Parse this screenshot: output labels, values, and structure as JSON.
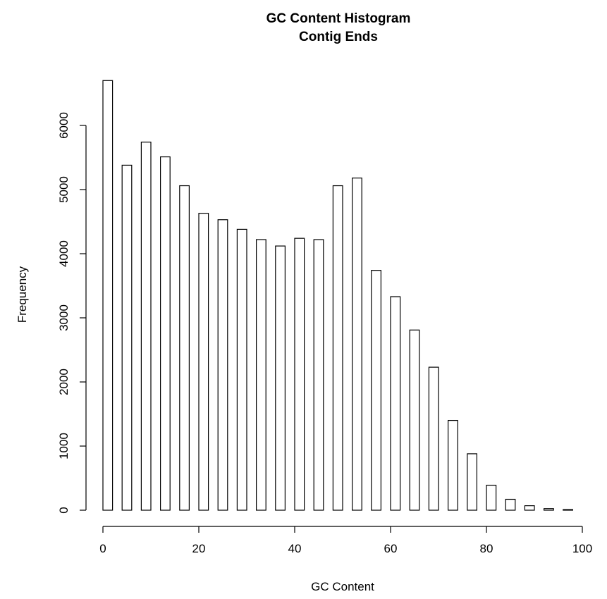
{
  "chart_data": {
    "type": "bar",
    "title": "GC Content Histogram",
    "subtitle": "Contig Ends",
    "xlabel": "GC Content",
    "ylabel": "Frequency",
    "xlim": [
      0,
      100
    ],
    "ylim": [
      0,
      6700
    ],
    "x_ticks": [
      0,
      20,
      40,
      60,
      80,
      100
    ],
    "y_ticks": [
      0,
      1000,
      2000,
      3000,
      4000,
      5000,
      6000
    ],
    "grid": false,
    "legend": "none",
    "bar_color": "#ffffff",
    "edge_color": "#000000",
    "bin_width": 4,
    "bars": [
      {
        "x_start": 0,
        "x_end": 4,
        "value": 6700
      },
      {
        "x_start": 4,
        "x_end": 8,
        "value": 5380
      },
      {
        "x_start": 8,
        "x_end": 12,
        "value": 5740
      },
      {
        "x_start": 12,
        "x_end": 16,
        "value": 5510
      },
      {
        "x_start": 16,
        "x_end": 20,
        "value": 5060
      },
      {
        "x_start": 20,
        "x_end": 24,
        "value": 4630
      },
      {
        "x_start": 24,
        "x_end": 28,
        "value": 4530
      },
      {
        "x_start": 28,
        "x_end": 32,
        "value": 4380
      },
      {
        "x_start": 32,
        "x_end": 36,
        "value": 4220
      },
      {
        "x_start": 36,
        "x_end": 40,
        "value": 4120
      },
      {
        "x_start": 40,
        "x_end": 44,
        "value": 4240
      },
      {
        "x_start": 44,
        "x_end": 48,
        "value": 4220
      },
      {
        "x_start": 48,
        "x_end": 52,
        "value": 5060
      },
      {
        "x_start": 52,
        "x_end": 56,
        "value": 5180
      },
      {
        "x_start": 56,
        "x_end": 60,
        "value": 3740
      },
      {
        "x_start": 60,
        "x_end": 64,
        "value": 3330
      },
      {
        "x_start": 64,
        "x_end": 68,
        "value": 2810
      },
      {
        "x_start": 68,
        "x_end": 72,
        "value": 2230
      },
      {
        "x_start": 72,
        "x_end": 76,
        "value": 1400
      },
      {
        "x_start": 76,
        "x_end": 80,
        "value": 880
      },
      {
        "x_start": 80,
        "x_end": 84,
        "value": 390
      },
      {
        "x_start": 84,
        "x_end": 88,
        "value": 170
      },
      {
        "x_start": 88,
        "x_end": 92,
        "value": 70
      },
      {
        "x_start": 92,
        "x_end": 96,
        "value": 25
      },
      {
        "x_start": 96,
        "x_end": 100,
        "value": 10
      }
    ]
  }
}
